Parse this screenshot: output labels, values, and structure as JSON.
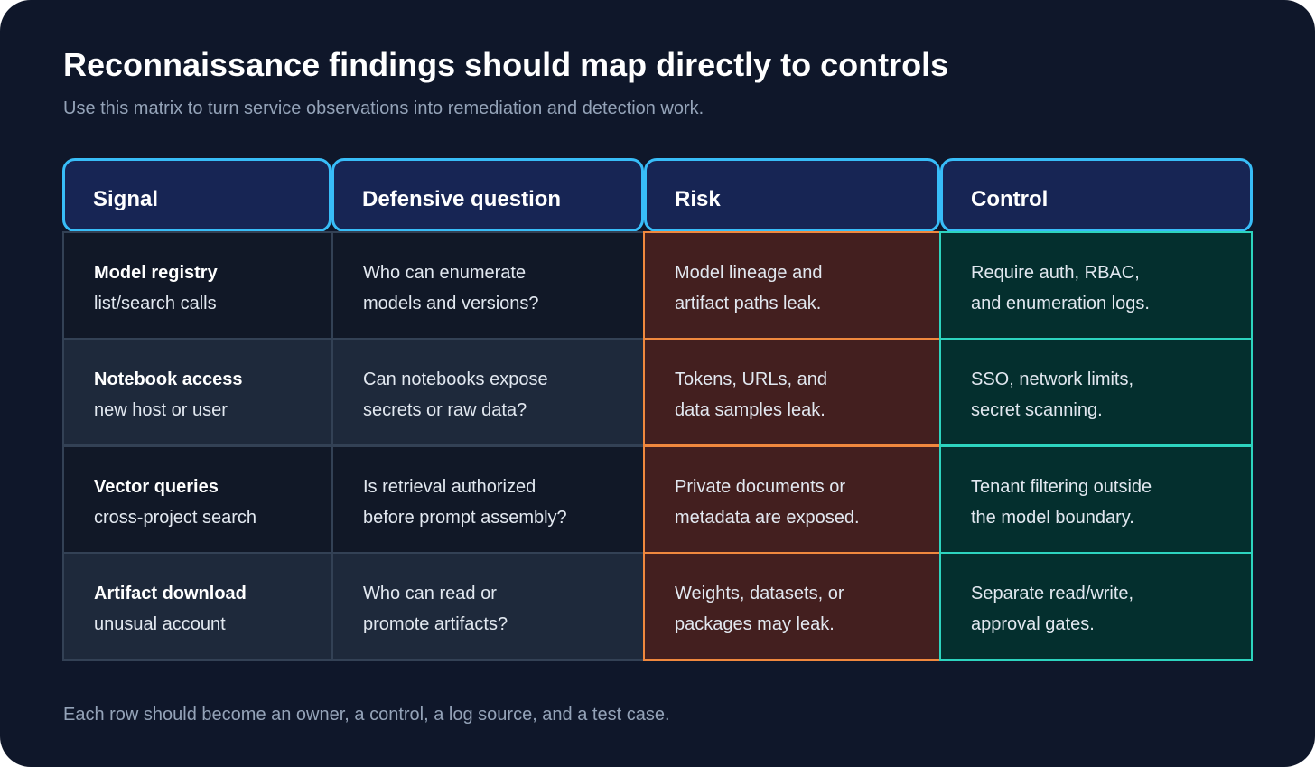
{
  "title": "Reconnaissance findings should map directly to controls",
  "subtitle": "Use this matrix to turn service observations into remediation and detection work.",
  "footer": "Each row should become an owner, a control, a log source, and a test case.",
  "colors": {
    "background": "#0f172a",
    "header_fill": "#172554",
    "header_border": "#38bdf8",
    "row_dark": "#111827",
    "row_light": "#1e293b",
    "risk_fill": "#431f1f",
    "risk_border": "#f0883e",
    "control_fill": "#042f2e",
    "control_border": "#2dd4bf"
  },
  "headers": [
    "Signal",
    "Defensive question",
    "Risk",
    "Control"
  ],
  "rows": [
    {
      "signal": [
        "Model registry",
        "list/search calls"
      ],
      "question": [
        "Who can enumerate",
        "models and versions?"
      ],
      "risk": [
        "Model lineage and",
        "artifact paths leak."
      ],
      "control": [
        "Require auth, RBAC,",
        "and enumeration logs."
      ]
    },
    {
      "signal": [
        "Notebook access",
        "new host or user"
      ],
      "question": [
        "Can notebooks expose",
        "secrets or raw data?"
      ],
      "risk": [
        "Tokens, URLs, and",
        "data samples leak."
      ],
      "control": [
        "SSO, network limits,",
        "secret scanning."
      ]
    },
    {
      "signal": [
        "Vector queries",
        "cross-project search"
      ],
      "question": [
        "Is retrieval authorized",
        "before prompt assembly?"
      ],
      "risk": [
        "Private documents or",
        "metadata are exposed."
      ],
      "control": [
        "Tenant filtering outside",
        "the model boundary."
      ]
    },
    {
      "signal": [
        "Artifact download",
        "unusual account"
      ],
      "question": [
        "Who can read or",
        "promote artifacts?"
      ],
      "risk": [
        "Weights, datasets, or",
        "packages may leak."
      ],
      "control": [
        "Separate read/write,",
        "approval gates."
      ]
    }
  ]
}
